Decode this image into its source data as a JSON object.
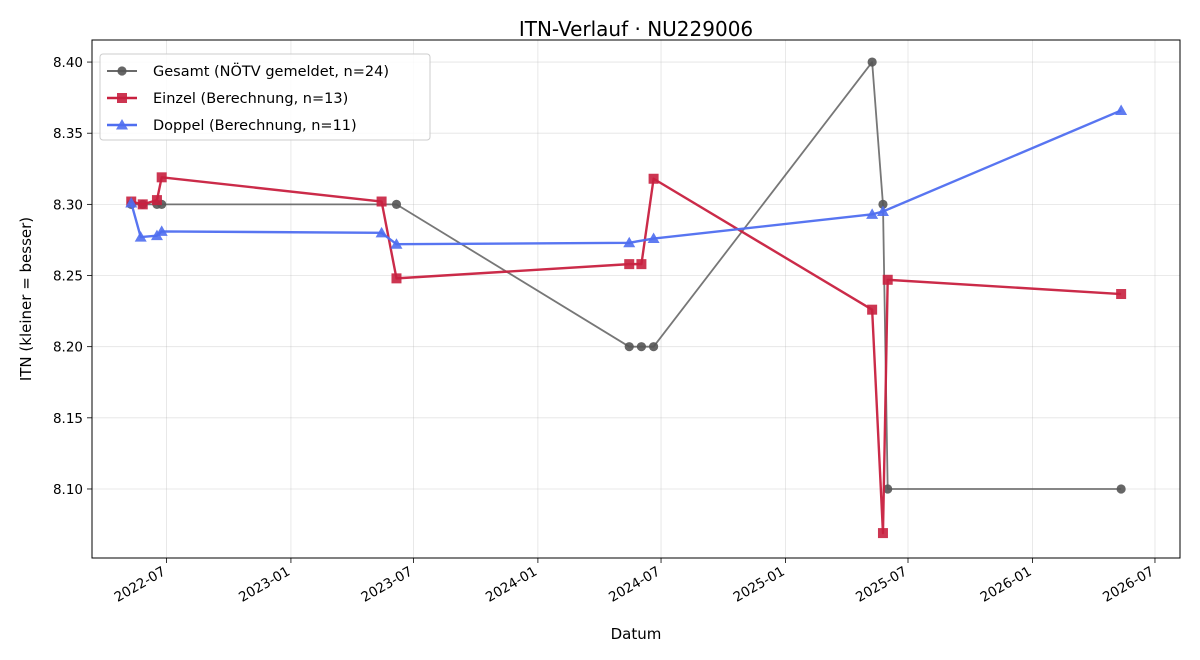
{
  "chart_data": {
    "type": "line",
    "title": "ITN-Verlauf · NU229006",
    "xlabel": "Datum",
    "ylabel": "ITN  (kleiner = besser)",
    "xlim": [
      "2022-03-13",
      "2026-08-07"
    ],
    "ylim": [
      8.0515,
      8.4155
    ],
    "x_ticks": [
      "2022-07",
      "2023-01",
      "2023-07",
      "2024-01",
      "2024-07",
      "2025-01",
      "2025-07",
      "2026-01",
      "2026-07"
    ],
    "y_ticks": [
      8.1,
      8.15,
      8.2,
      8.25,
      8.3,
      8.35,
      8.4
    ],
    "y_tick_labels": [
      "8.10",
      "8.15",
      "8.20",
      "8.25",
      "8.30",
      "8.35",
      "8.40"
    ],
    "grid": true,
    "legend_position": "upper-left",
    "series": [
      {
        "name": "Gesamt (NÖTV gemeldet, n=24)",
        "color": "#555555",
        "marker": "circle",
        "points": [
          {
            "x": "2022-05-10",
            "y": 8.3
          },
          {
            "x": "2022-05-27",
            "y": 8.3
          },
          {
            "x": "2022-06-17",
            "y": 8.3
          },
          {
            "x": "2022-06-24",
            "y": 8.3
          },
          {
            "x": "2023-06-06",
            "y": 8.3
          },
          {
            "x": "2024-05-15",
            "y": 8.2
          },
          {
            "x": "2024-06-02",
            "y": 8.2
          },
          {
            "x": "2024-06-20",
            "y": 8.2
          },
          {
            "x": "2025-05-09",
            "y": 8.4
          },
          {
            "x": "2025-05-25",
            "y": 8.3
          },
          {
            "x": "2025-06-01",
            "y": 8.1
          },
          {
            "x": "2026-05-12",
            "y": 8.1
          }
        ]
      },
      {
        "name": "Einzel (Berechnung, n=13)",
        "color": "#c8203f",
        "marker": "square",
        "points": [
          {
            "x": "2022-05-10",
            "y": 8.302
          },
          {
            "x": "2022-05-27",
            "y": 8.3
          },
          {
            "x": "2022-06-17",
            "y": 8.303
          },
          {
            "x": "2022-06-24",
            "y": 8.319
          },
          {
            "x": "2023-05-15",
            "y": 8.302
          },
          {
            "x": "2023-06-06",
            "y": 8.248
          },
          {
            "x": "2024-05-15",
            "y": 8.258
          },
          {
            "x": "2024-06-02",
            "y": 8.258
          },
          {
            "x": "2024-06-20",
            "y": 8.318
          },
          {
            "x": "2025-05-09",
            "y": 8.226
          },
          {
            "x": "2025-05-25",
            "y": 8.069
          },
          {
            "x": "2025-06-01",
            "y": 8.247
          },
          {
            "x": "2026-05-12",
            "y": 8.237
          }
        ]
      },
      {
        "name": "Doppel (Berechnung, n=11)",
        "color": "#4f6ef0",
        "marker": "triangle",
        "points": [
          {
            "x": "2022-05-10",
            "y": 8.301
          },
          {
            "x": "2022-05-24",
            "y": 8.277
          },
          {
            "x": "2022-06-17",
            "y": 8.278
          },
          {
            "x": "2022-06-24",
            "y": 8.281
          },
          {
            "x": "2023-05-15",
            "y": 8.28
          },
          {
            "x": "2023-06-06",
            "y": 8.272
          },
          {
            "x": "2024-05-15",
            "y": 8.273
          },
          {
            "x": "2024-06-20",
            "y": 8.276
          },
          {
            "x": "2025-05-09",
            "y": 8.293
          },
          {
            "x": "2025-05-25",
            "y": 8.295
          },
          {
            "x": "2026-05-12",
            "y": 8.366
          }
        ]
      }
    ]
  }
}
